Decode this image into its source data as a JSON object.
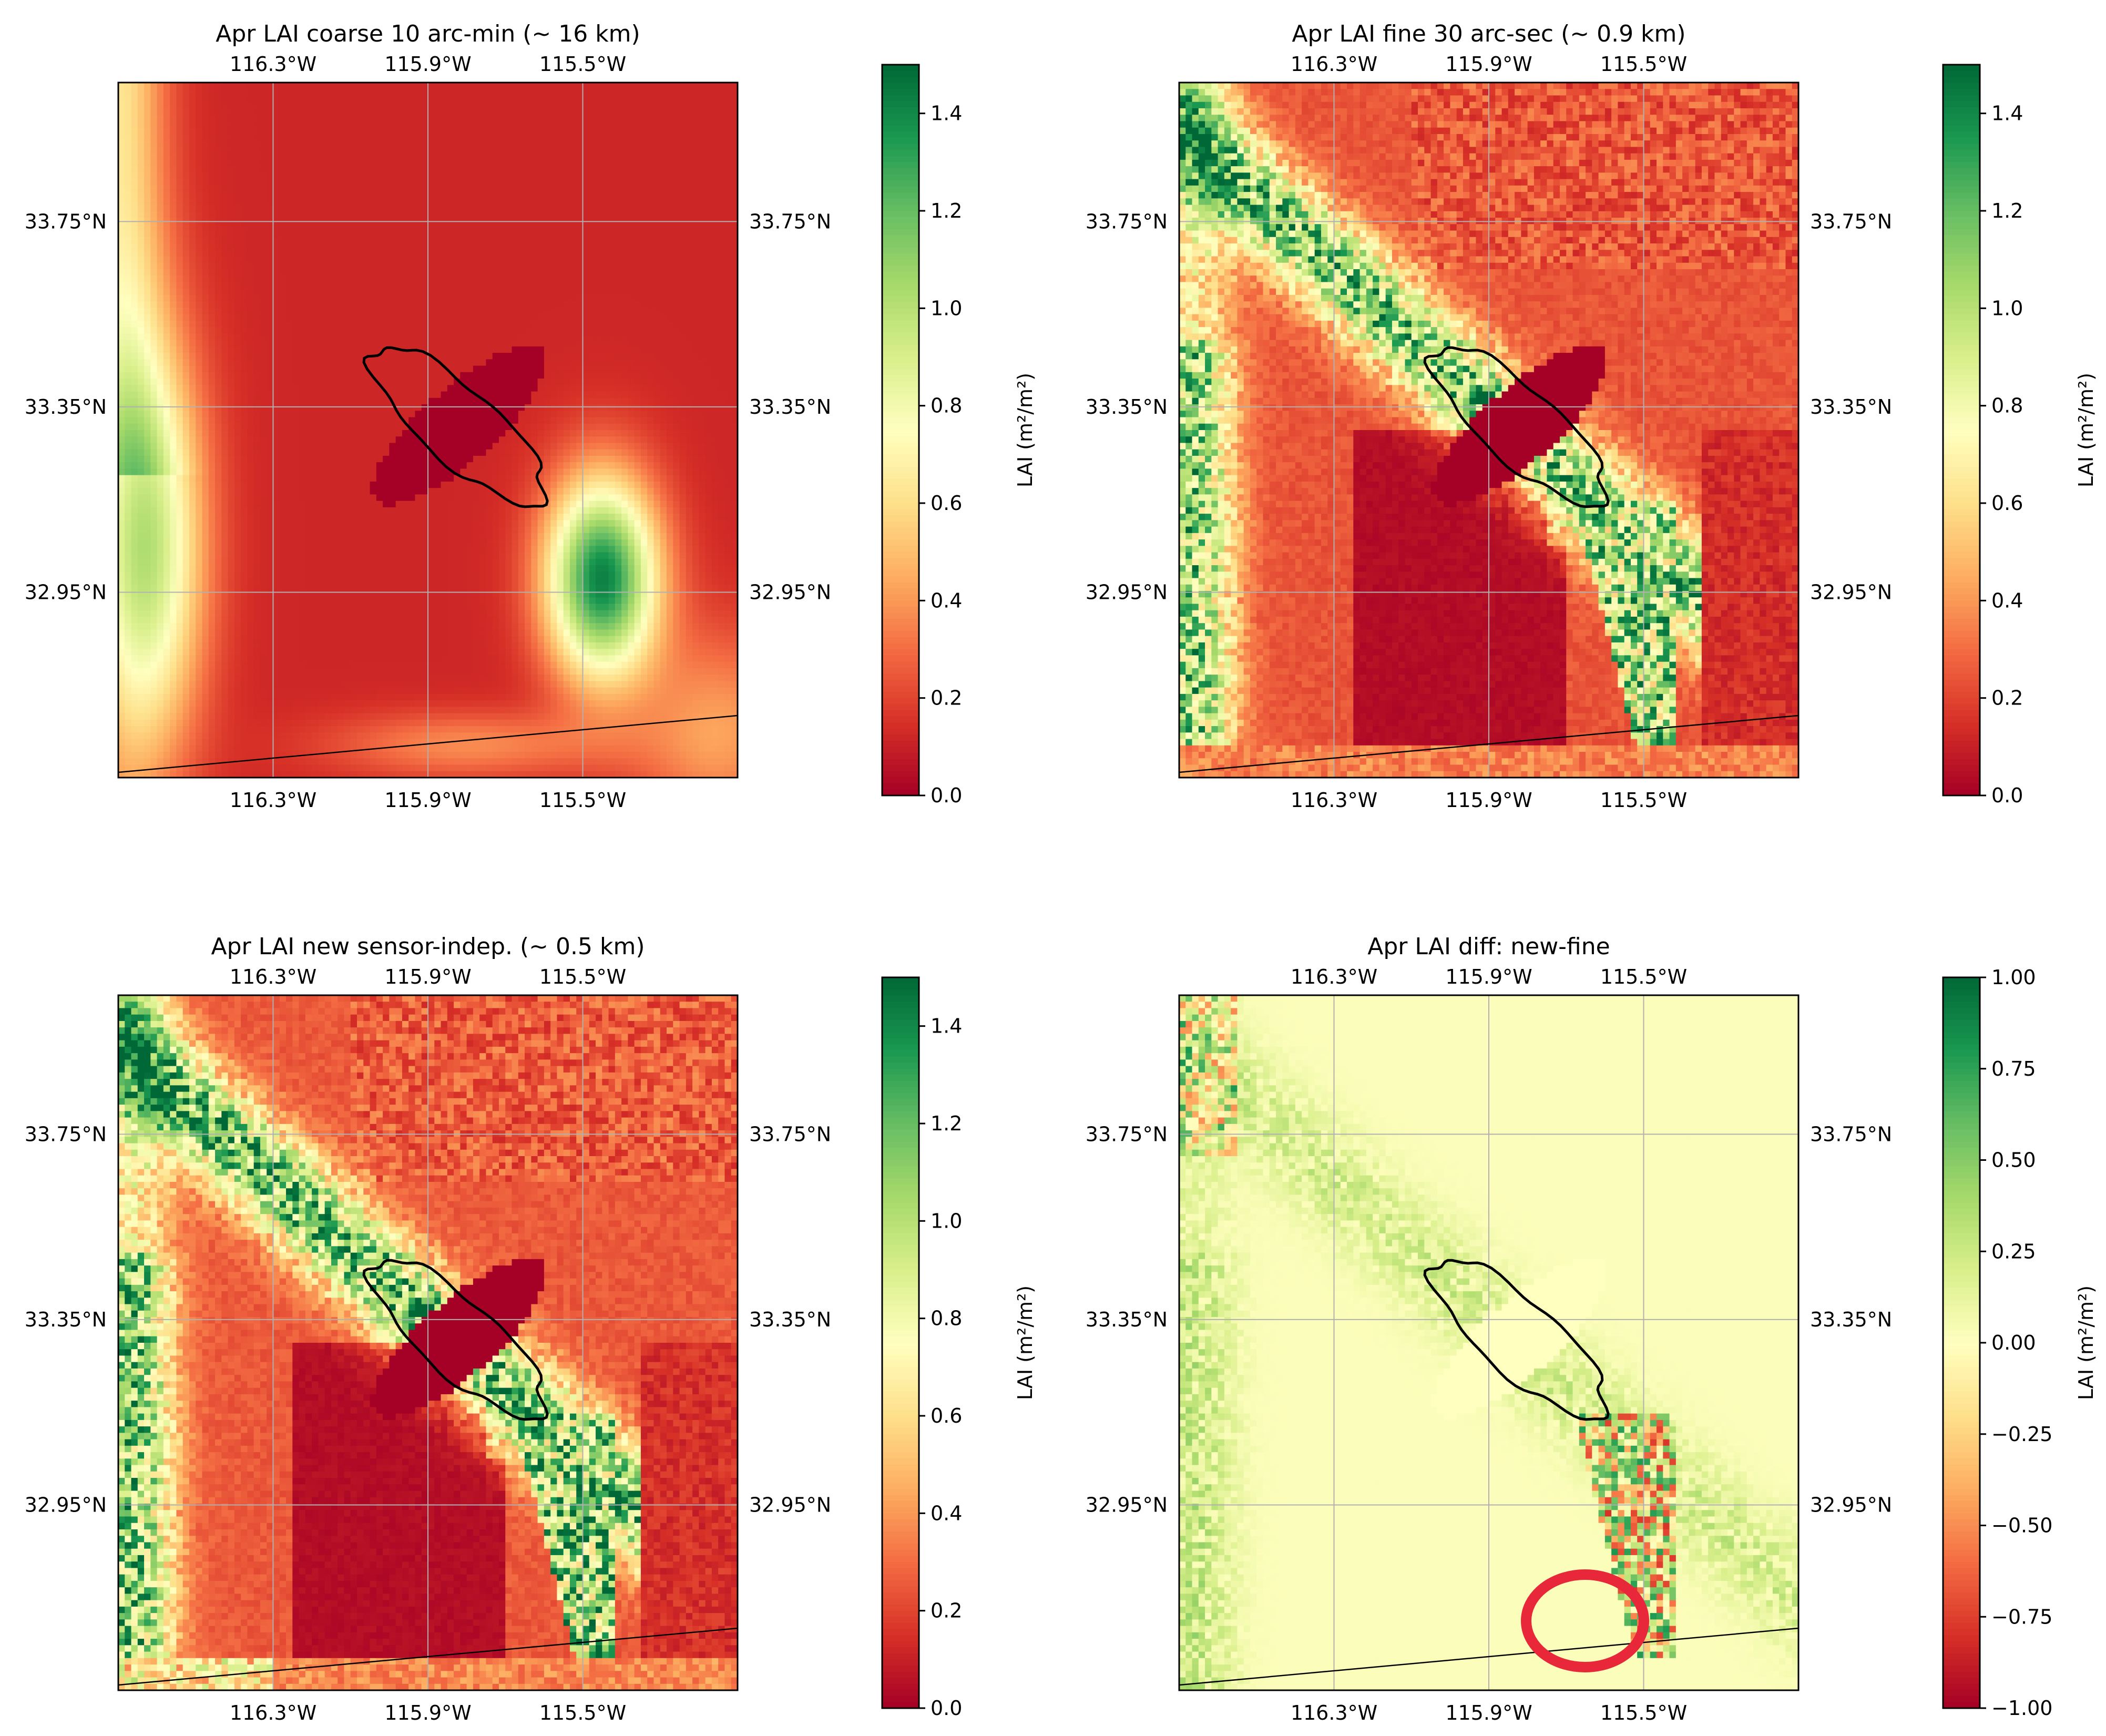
{
  "figure": {
    "colormap": "RdYlGn",
    "colormap_stops": [
      "#a50026",
      "#d73027",
      "#f46d43",
      "#fdae61",
      "#fee08b",
      "#ffffbf",
      "#d9ef8b",
      "#a6d96a",
      "#66bd63",
      "#1a9850",
      "#006837"
    ],
    "outline_color": "#000000",
    "annotation_circle_color": "#e8283a",
    "grid_color": "#b0b0b0"
  },
  "chart_data": [
    {
      "type": "heatmap",
      "title": "Apr LAI coarse 10 arc-min (~ 16 km)",
      "x_ticks": [
        "116.3°W",
        "115.9°W",
        "115.5°W"
      ],
      "x_tick_values": [
        -116.3,
        -115.9,
        -115.5
      ],
      "y_ticks": [
        "33.75°N",
        "33.35°N",
        "32.95°N"
      ],
      "y_tick_values": [
        33.75,
        33.35,
        32.95
      ],
      "xlim": [
        -116.7,
        -115.1
      ],
      "ylim": [
        32.55,
        34.05
      ],
      "grid": true,
      "colorbar": {
        "label": "LAI (m²/m²)",
        "range": [
          0.0,
          1.5
        ],
        "ticks": [
          "0.0",
          "0.2",
          "0.4",
          "0.6",
          "0.8",
          "1.0",
          "1.2",
          "1.4"
        ],
        "tick_values": [
          0.0,
          0.2,
          0.4,
          0.6,
          0.8,
          1.0,
          1.2,
          1.4
        ]
      },
      "field": "coarse",
      "lake_filled": true,
      "circled_region": false
    },
    {
      "type": "heatmap",
      "title": "Apr LAI fine 30 arc-sec (~  0.9 km)",
      "x_ticks": [
        "116.3°W",
        "115.9°W",
        "115.5°W"
      ],
      "x_tick_values": [
        -116.3,
        -115.9,
        -115.5
      ],
      "y_ticks": [
        "33.75°N",
        "33.35°N",
        "32.95°N"
      ],
      "y_tick_values": [
        33.75,
        33.35,
        32.95
      ],
      "xlim": [
        -116.7,
        -115.1
      ],
      "ylim": [
        32.55,
        34.05
      ],
      "grid": true,
      "colorbar": {
        "label": "LAI (m²/m²)",
        "range": [
          0.0,
          1.5
        ],
        "ticks": [
          "0.0",
          "0.2",
          "0.4",
          "0.6",
          "0.8",
          "1.0",
          "1.2",
          "1.4"
        ],
        "tick_values": [
          0.0,
          0.2,
          0.4,
          0.6,
          0.8,
          1.0,
          1.2,
          1.4
        ]
      },
      "field": "fine",
      "lake_filled": true,
      "circled_region": false
    },
    {
      "type": "heatmap",
      "title": "Apr LAI new sensor-indep. (~ 0.5 km)",
      "x_ticks": [
        "116.3°W",
        "115.9°W",
        "115.5°W"
      ],
      "x_tick_values": [
        -116.3,
        -115.9,
        -115.5
      ],
      "y_ticks": [
        "33.75°N",
        "33.35°N",
        "32.95°N"
      ],
      "y_tick_values": [
        33.75,
        33.35,
        32.95
      ],
      "xlim": [
        -116.7,
        -115.1
      ],
      "ylim": [
        32.55,
        34.05
      ],
      "grid": true,
      "colorbar": {
        "label": "LAI (m²/m²)",
        "range": [
          0.0,
          1.5
        ],
        "ticks": [
          "0.0",
          "0.2",
          "0.4",
          "0.6",
          "0.8",
          "1.0",
          "1.2",
          "1.4"
        ],
        "tick_values": [
          0.0,
          0.2,
          0.4,
          0.6,
          0.8,
          1.0,
          1.2,
          1.4
        ]
      },
      "field": "new",
      "lake_filled": true,
      "circled_region": false
    },
    {
      "type": "heatmap",
      "title": "Apr LAI diff: new-fine",
      "x_ticks": [
        "116.3°W",
        "115.9°W",
        "115.5°W"
      ],
      "x_tick_values": [
        -116.3,
        -115.9,
        -115.5
      ],
      "y_ticks": [
        "33.75°N",
        "33.35°N",
        "32.95°N"
      ],
      "y_tick_values": [
        33.75,
        33.35,
        32.95
      ],
      "xlim": [
        -116.7,
        -115.1
      ],
      "ylim": [
        32.55,
        34.05
      ],
      "grid": true,
      "colorbar": {
        "label": "LAI (m²/m²)",
        "range": [
          -1.0,
          1.0
        ],
        "ticks": [
          "1.00",
          "0.75",
          "0.50",
          "0.25",
          "0.00",
          "−0.25",
          "−0.50",
          "−0.75",
          "−1.00"
        ],
        "tick_values": [
          1.0,
          0.75,
          0.5,
          0.25,
          0.0,
          -0.25,
          -0.5,
          -0.75,
          -1.0
        ]
      },
      "field": "diff",
      "lake_filled": false,
      "circled_region": true
    }
  ]
}
